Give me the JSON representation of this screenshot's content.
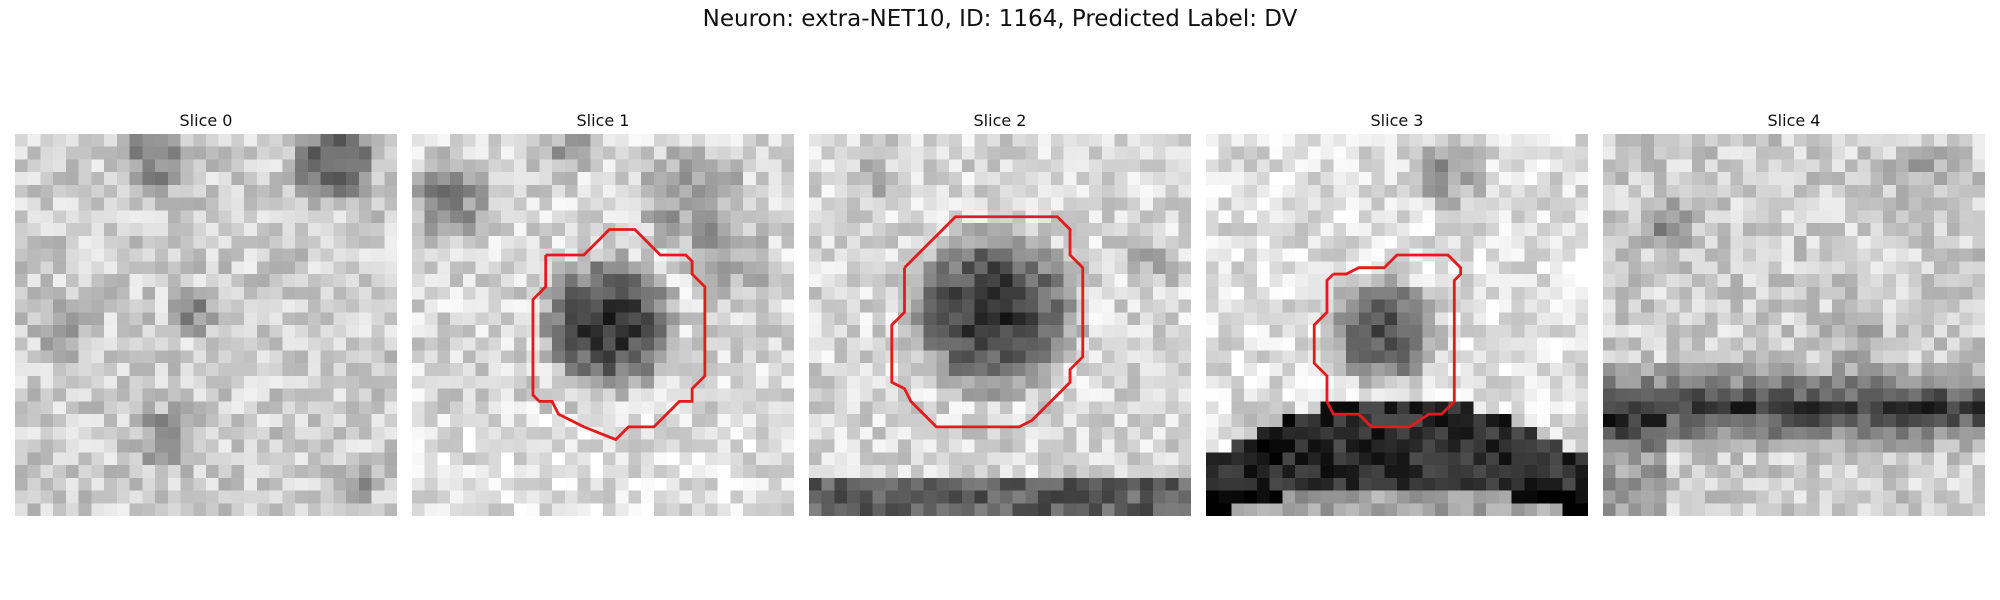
{
  "figure": {
    "title": "Neuron: extra-NET10, ID: 1164, Predicted Label: DV"
  },
  "panels": [
    {
      "title": "Slice 0",
      "has_contour": false,
      "contour_color": "#e41a1c"
    },
    {
      "title": "Slice 1",
      "has_contour": true,
      "contour_color": "#e41a1c"
    },
    {
      "title": "Slice 2",
      "has_contour": true,
      "contour_color": "#e41a1c"
    },
    {
      "title": "Slice 3",
      "has_contour": true,
      "contour_color": "#e41a1c"
    },
    {
      "title": "Slice 4",
      "has_contour": false,
      "contour_color": "#e41a1c"
    }
  ],
  "colormap": "grayscale"
}
